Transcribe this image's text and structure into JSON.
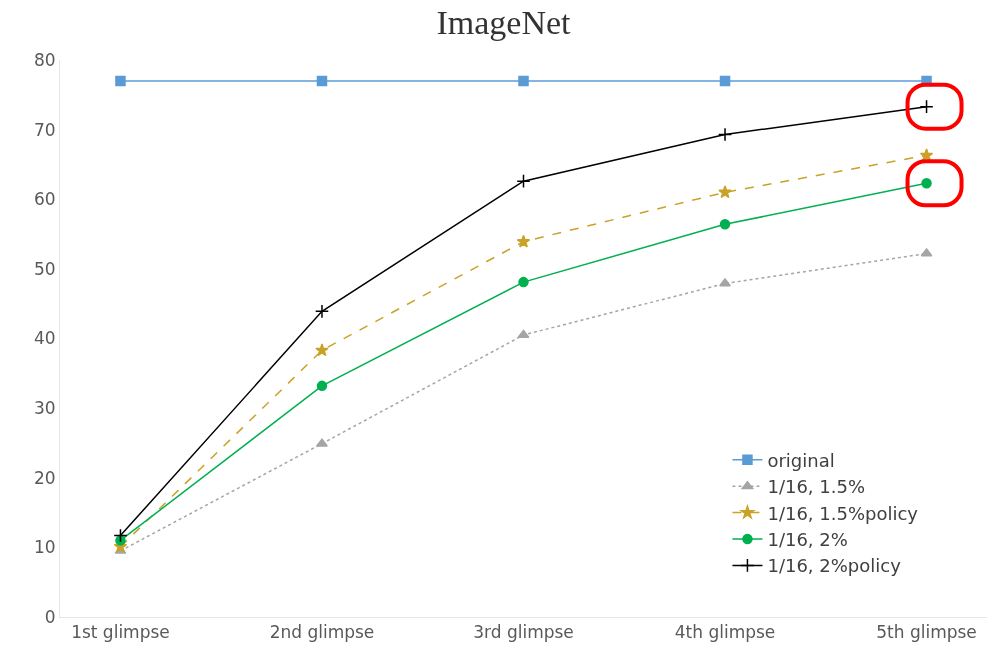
{
  "chart_data": {
    "type": "line",
    "title": "ImageNet",
    "categories": [
      "1st glimpse",
      "2nd glimpse",
      "3rd glimpse",
      "4th glimpse",
      "5th glimpse"
    ],
    "series": [
      {
        "name": "original",
        "color": "#5b9bd5",
        "marker": "square",
        "line_style": "solid",
        "values": [
          77,
          77,
          77,
          77,
          77
        ]
      },
      {
        "name": "1/16, 1.5%",
        "color": "#a5a5a5",
        "marker": "triangle",
        "line_style": "dotted",
        "values": [
          9.5,
          24.9,
          40.5,
          47.9,
          52.2
        ]
      },
      {
        "name": "1/16, 1.5%policy",
        "color": "#c9a227",
        "marker": "star",
        "line_style": "dashed",
        "values": [
          10.1,
          38.3,
          53.9,
          61,
          66.3
        ]
      },
      {
        "name": "1/16, 2%",
        "color": "#00b050",
        "marker": "circle",
        "line_style": "solid",
        "values": [
          11,
          33.2,
          48.1,
          56.4,
          62.3
        ]
      },
      {
        "name": "1/16, 2%policy",
        "color": "#000000",
        "marker": "cross",
        "line_style": "solid",
        "values": [
          11.7,
          43.9,
          62.6,
          69.3,
          73.3
        ]
      }
    ],
    "ylim": [
      0,
      80
    ],
    "yticks": [
      0,
      10,
      20,
      30,
      40,
      50,
      60,
      70,
      80
    ],
    "grid": false,
    "legend": "bottom right"
  }
}
